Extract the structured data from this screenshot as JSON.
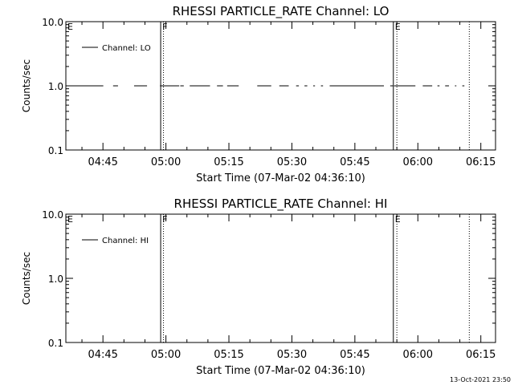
{
  "footer": {
    "timestamp": "13-Oct-2021 23:50"
  },
  "chart_data": [
    {
      "type": "line",
      "title": "RHESSI PARTICLE_RATE Channel: LO",
      "xlabel": "Start Time (07-Mar-02 04:36:10)",
      "ylabel": "Counts/sec",
      "y_scale": "log",
      "ylim": [
        0.1,
        10.0
      ],
      "y_ticks": [
        "10.0",
        "1.0",
        "0.1"
      ],
      "xlim": [
        "04:36:10",
        "06:18:30"
      ],
      "x_ticks": [
        "04:45",
        "05:00",
        "05:15",
        "05:30",
        "05:45",
        "06:00",
        "06:15"
      ],
      "legend": {
        "entries": [
          "Channel: LO"
        ],
        "position": "top-left"
      },
      "grid": false,
      "time_markers": [
        {
          "label": "E",
          "time": "04:36:10",
          "style": "none"
        },
        {
          "label": "F",
          "time": "04:58:45",
          "style": "solid"
        },
        {
          "label": "E",
          "time": "05:54:10",
          "style": "solid"
        }
      ],
      "dotted_lines": [
        "04:59:25",
        "05:55:00",
        "06:12:15"
      ],
      "series": [
        {
          "name": "Channel: LO",
          "segments": [
            {
              "x": [
                "04:36:10",
                "04:45:05"
              ],
              "y": [
                1.0,
                1.0
              ]
            },
            {
              "x": [
                "04:47:25",
                "04:48:35"
              ],
              "y": [
                1.0,
                1.0
              ]
            },
            {
              "x": [
                "04:52:25",
                "04:55:30"
              ],
              "y": [
                1.0,
                1.0
              ]
            },
            {
              "x": [
                "04:58:35",
                "05:03:10"
              ],
              "y": [
                1.0,
                1.0
              ]
            },
            {
              "x": [
                "05:03:25",
                "05:04:15"
              ],
              "y": [
                1.0,
                1.0
              ]
            },
            {
              "x": [
                "05:05:40",
                "05:10:30"
              ],
              "y": [
                1.0,
                1.0
              ]
            },
            {
              "x": [
                "05:12:10",
                "05:13:35"
              ],
              "y": [
                1.0,
                1.0
              ]
            },
            {
              "x": [
                "05:14:35",
                "05:17:20"
              ],
              "y": [
                1.0,
                1.0
              ]
            },
            {
              "x": [
                "05:21:45",
                "05:25:05"
              ],
              "y": [
                1.0,
                1.0
              ]
            },
            {
              "x": [
                "05:27:00",
                "05:29:15"
              ],
              "y": [
                1.0,
                1.0
              ]
            },
            {
              "x": [
                "05:31:00",
                "05:31:40"
              ],
              "y": [
                1.0,
                1.0
              ]
            },
            {
              "x": [
                "05:33:00",
                "05:33:40"
              ],
              "y": [
                1.0,
                1.0
              ]
            },
            {
              "x": [
                "05:35:05",
                "05:35:30"
              ],
              "y": [
                1.0,
                1.0
              ]
            },
            {
              "x": [
                "05:36:55",
                "05:37:25"
              ],
              "y": [
                1.0,
                1.0
              ]
            },
            {
              "x": [
                "05:39:00",
                "05:51:55"
              ],
              "y": [
                1.0,
                1.0
              ]
            },
            {
              "x": [
                "05:53:25",
                "05:54:05"
              ],
              "y": [
                1.0,
                1.0
              ]
            },
            {
              "x": [
                "05:54:20",
                "05:59:25"
              ],
              "y": [
                1.0,
                1.0
              ]
            },
            {
              "x": [
                "06:01:10",
                "06:03:25"
              ],
              "y": [
                1.0,
                1.0
              ]
            },
            {
              "x": [
                "06:04:40",
                "06:05:10"
              ],
              "y": [
                1.0,
                1.0
              ]
            },
            {
              "x": [
                "06:06:30",
                "06:07:25"
              ],
              "y": [
                1.0,
                1.0
              ]
            },
            {
              "x": [
                "06:08:50",
                "06:09:10"
              ],
              "y": [
                1.0,
                1.0
              ]
            },
            {
              "x": [
                "06:10:35",
                "06:11:05"
              ],
              "y": [
                1.0,
                1.0
              ]
            }
          ]
        }
      ]
    },
    {
      "type": "line",
      "title": "RHESSI PARTICLE_RATE Channel: HI",
      "xlabel": "Start Time (07-Mar-02 04:36:10)",
      "ylabel": "Counts/sec",
      "y_scale": "log",
      "ylim": [
        0.1,
        10.0
      ],
      "y_ticks": [
        "10.0",
        "1.0",
        "0.1"
      ],
      "xlim": [
        "04:36:10",
        "06:18:30"
      ],
      "x_ticks": [
        "04:45",
        "05:00",
        "05:15",
        "05:30",
        "05:45",
        "06:00",
        "06:15"
      ],
      "legend": {
        "entries": [
          "Channel: HI"
        ],
        "position": "top-left"
      },
      "grid": false,
      "time_markers": [
        {
          "label": "E",
          "time": "04:36:10",
          "style": "none"
        },
        {
          "label": "F",
          "time": "04:58:45",
          "style": "solid"
        },
        {
          "label": "E",
          "time": "05:54:10",
          "style": "solid"
        }
      ],
      "dotted_lines": [
        "04:59:25",
        "05:55:00",
        "06:12:15"
      ],
      "series": [
        {
          "name": "Channel: HI",
          "segments": []
        }
      ]
    }
  ]
}
